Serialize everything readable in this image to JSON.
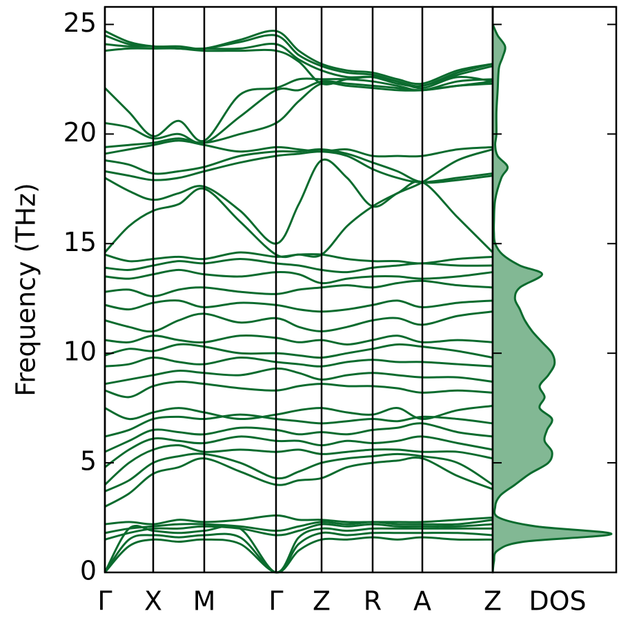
{
  "chart_data": [
    {
      "type": "line",
      "ylabel": "Frequency (THz)",
      "x": [
        0,
        0.35,
        0.7,
        1.07,
        1.44,
        1.96,
        2.48,
        2.81,
        3.14,
        3.51,
        3.88,
        4.24,
        4.6,
        5.11,
        5.62
      ],
      "xlim": [
        0,
        5.62
      ],
      "xticks": [
        {
          "value": 0,
          "label": "Γ"
        },
        {
          "value": 0.7,
          "label": "X"
        },
        {
          "value": 1.44,
          "label": "M"
        },
        {
          "value": 2.48,
          "label": "Γ"
        },
        {
          "value": 3.14,
          "label": "Z"
        },
        {
          "value": 3.88,
          "label": "R"
        },
        {
          "value": 4.6,
          "label": "A"
        },
        {
          "value": 5.62,
          "label": "Z"
        }
      ],
      "ylim": [
        0,
        25.8
      ],
      "yticks": [
        0,
        5,
        10,
        15,
        20,
        25
      ],
      "grid": true,
      "color": "#0b6b2e",
      "series": [
        {
          "values": [
            0,
            1.2,
            1.5,
            1.4,
            1.5,
            1.3,
            0,
            1.0,
            1.5,
            1.5,
            1.6,
            1.5,
            1.6,
            1.5,
            1.5
          ]
        },
        {
          "values": [
            0,
            1.5,
            1.7,
            1.6,
            1.7,
            1.6,
            0,
            1.3,
            1.8,
            1.7,
            1.8,
            1.8,
            1.8,
            1.8,
            1.7
          ]
        },
        {
          "values": [
            0,
            2.0,
            1.9,
            1.8,
            1.9,
            2.0,
            0,
            1.6,
            2.0,
            1.9,
            2.0,
            2.0,
            2.0,
            2.0,
            2.0
          ]
        },
        {
          "values": [
            1.5,
            1.8,
            2.0,
            2.0,
            2.1,
            2.0,
            1.7,
            1.9,
            2.2,
            2.1,
            2.2,
            2.1,
            2.1,
            2.1,
            2.2
          ]
        },
        {
          "values": [
            1.8,
            2.0,
            2.1,
            2.2,
            2.2,
            2.1,
            1.9,
            2.1,
            2.3,
            2.2,
            2.3,
            2.2,
            2.2,
            2.2,
            2.4
          ]
        },
        {
          "values": [
            2.2,
            2.3,
            2.2,
            2.4,
            2.3,
            2.4,
            2.6,
            2.4,
            2.4,
            2.3,
            2.3,
            2.3,
            2.3,
            2.4,
            2.5
          ]
        },
        {
          "values": [
            3.0,
            3.6,
            4.5,
            4.8,
            5.2,
            4.6,
            4.0,
            4.2,
            4.3,
            4.8,
            5.0,
            5.1,
            5.2,
            4.4,
            3.8
          ]
        },
        {
          "values": [
            3.7,
            4.2,
            5.0,
            5.3,
            5.4,
            5.0,
            4.3,
            4.6,
            5.0,
            5.2,
            5.3,
            5.4,
            5.3,
            5.0,
            4.0
          ]
        },
        {
          "values": [
            4.0,
            5.0,
            5.6,
            5.8,
            5.5,
            5.6,
            5.5,
            5.6,
            5.4,
            5.5,
            5.6,
            5.6,
            5.5,
            5.5,
            5.2
          ]
        },
        {
          "values": [
            4.8,
            5.6,
            6.1,
            6.0,
            5.9,
            6.2,
            6.0,
            6.0,
            5.8,
            6.0,
            5.9,
            6.0,
            6.2,
            5.9,
            5.6
          ]
        },
        {
          "values": [
            5.5,
            6.0,
            6.5,
            6.4,
            6.3,
            6.6,
            6.5,
            6.3,
            6.4,
            6.3,
            6.5,
            6.6,
            6.8,
            6.4,
            6.2
          ]
        },
        {
          "values": [
            6.2,
            6.5,
            7.0,
            7.1,
            7.0,
            7.2,
            7.0,
            6.9,
            6.8,
            6.9,
            7.0,
            6.9,
            7.1,
            7.0,
            6.8
          ]
        },
        {
          "values": [
            7.5,
            7.0,
            7.3,
            7.5,
            7.3,
            7.0,
            7.2,
            7.4,
            7.5,
            7.3,
            7.2,
            7.5,
            7.0,
            7.4,
            7.6
          ]
        },
        {
          "values": [
            8.3,
            8.0,
            8.5,
            8.7,
            8.6,
            8.4,
            8.3,
            8.5,
            8.6,
            8.5,
            8.5,
            8.4,
            8.2,
            8.3,
            8.2
          ]
        },
        {
          "values": [
            8.6,
            8.8,
            9.0,
            9.2,
            9.1,
            9.0,
            9.3,
            9.1,
            8.8,
            9.0,
            9.1,
            9.0,
            8.9,
            8.9,
            8.7
          ]
        },
        {
          "values": [
            9.4,
            9.5,
            9.8,
            9.6,
            9.5,
            9.8,
            9.6,
            9.5,
            9.4,
            9.6,
            9.7,
            9.6,
            9.6,
            9.5,
            9.4
          ]
        },
        {
          "values": [
            9.9,
            10.2,
            10.1,
            10.4,
            10.3,
            10.0,
            10.0,
            9.9,
            9.8,
            10.0,
            10.2,
            10.4,
            10.3,
            10.1,
            9.8
          ]
        },
        {
          "values": [
            10.6,
            10.5,
            10.8,
            10.6,
            10.5,
            10.8,
            10.7,
            10.5,
            10.6,
            10.4,
            10.6,
            10.8,
            10.5,
            10.6,
            10.5
          ]
        },
        {
          "values": [
            11.5,
            11.2,
            11.0,
            11.5,
            11.8,
            11.4,
            11.6,
            11.2,
            11.0,
            11.2,
            11.5,
            11.6,
            11.3,
            11.7,
            11.9
          ]
        },
        {
          "values": [
            12.2,
            12.0,
            12.3,
            12.4,
            12.1,
            12.3,
            12.2,
            12.0,
            11.9,
            12.0,
            12.2,
            12.4,
            12.1,
            12.3,
            12.4
          ]
        },
        {
          "values": [
            12.8,
            12.9,
            12.6,
            12.9,
            13.0,
            12.8,
            12.7,
            12.9,
            13.0,
            13.1,
            13.0,
            13.2,
            13.3,
            13.1,
            13.0
          ]
        },
        {
          "values": [
            13.5,
            13.4,
            13.6,
            13.8,
            13.6,
            13.5,
            13.7,
            13.6,
            13.2,
            13.4,
            13.5,
            13.5,
            13.4,
            13.5,
            13.7
          ]
        },
        {
          "values": [
            13.9,
            13.8,
            14.0,
            14.2,
            14.1,
            14.3,
            14.1,
            14.0,
            13.8,
            13.7,
            13.9,
            14.0,
            14.1,
            14.0,
            14.0
          ]
        },
        {
          "values": [
            14.5,
            14.2,
            14.3,
            14.4,
            14.3,
            14.6,
            14.4,
            14.5,
            14.5,
            14.3,
            14.2,
            14.2,
            14.1,
            14.3,
            14.4
          ]
        },
        {
          "values": [
            14.6,
            15.8,
            16.5,
            16.8,
            17.5,
            16.0,
            14.5,
            14.5,
            14.5,
            15.8,
            16.7,
            17.3,
            17.8,
            16.2,
            14.6
          ]
        },
        {
          "values": [
            18.0,
            17.4,
            17.0,
            17.3,
            17.6,
            16.5,
            15.0,
            16.8,
            18.8,
            18.0,
            16.7,
            17.3,
            17.8,
            18.8,
            19.3
          ]
        },
        {
          "values": [
            18.3,
            18.1,
            17.9,
            18.0,
            18.3,
            18.7,
            19.0,
            19.1,
            19.2,
            19.0,
            18.4,
            18.0,
            17.8,
            18.0,
            18.2
          ]
        },
        {
          "values": [
            18.8,
            18.6,
            18.2,
            18.3,
            18.5,
            19.0,
            19.2,
            19.2,
            19.3,
            19.1,
            18.7,
            18.3,
            17.8,
            17.9,
            18.1
          ]
        },
        {
          "values": [
            19.1,
            19.3,
            19.5,
            19.7,
            19.5,
            19.2,
            19.4,
            19.3,
            19.2,
            19.3,
            19.0,
            19.0,
            19.0,
            19.3,
            19.4
          ]
        },
        {
          "values": [
            19.4,
            19.5,
            19.6,
            19.8,
            19.6,
            20.0,
            20.5,
            21.5,
            22.3,
            22.2,
            22.1,
            22.0,
            22.0,
            22.2,
            22.3
          ]
        },
        {
          "values": [
            20.5,
            20.3,
            19.8,
            20.0,
            19.6,
            20.8,
            22.0,
            22.0,
            22.4,
            22.3,
            22.2,
            22.1,
            22.0,
            22.2,
            22.4
          ]
        },
        {
          "values": [
            22.1,
            21.0,
            19.9,
            20.6,
            19.7,
            21.8,
            22.1,
            22.5,
            22.5,
            22.5,
            22.4,
            22.2,
            22.0,
            22.4,
            22.5
          ]
        },
        {
          "values": [
            23.8,
            23.9,
            23.9,
            23.9,
            23.8,
            23.8,
            23.8,
            23.3,
            22.3,
            22.5,
            22.6,
            22.4,
            22.1,
            22.6,
            22.4
          ]
        },
        {
          "values": [
            24.1,
            24.0,
            24.0,
            23.9,
            23.9,
            23.9,
            24.1,
            23.4,
            22.9,
            22.6,
            22.6,
            22.3,
            22.2,
            22.7,
            23.1
          ]
        },
        {
          "values": [
            24.5,
            24.1,
            24.0,
            23.9,
            23.9,
            24.2,
            24.5,
            23.6,
            23.1,
            22.8,
            22.7,
            22.4,
            22.2,
            22.8,
            23.2
          ]
        },
        {
          "values": [
            24.7,
            24.2,
            24.0,
            24.0,
            23.9,
            24.3,
            24.7,
            23.8,
            23.2,
            22.9,
            22.8,
            22.5,
            22.3,
            22.9,
            23.2
          ]
        }
      ]
    },
    {
      "type": "area",
      "xlabel": "DOS",
      "frequencies": [
        0,
        0.5,
        1.0,
        1.4,
        1.75,
        2.1,
        2.5,
        3.0,
        3.5,
        4.0,
        4.5,
        5.0,
        5.5,
        6.0,
        6.5,
        7.0,
        7.5,
        8.0,
        8.5,
        9.0,
        9.5,
        10.0,
        10.5,
        11.0,
        11.5,
        12.0,
        12.5,
        13.0,
        13.6,
        14.0,
        14.5,
        15.0,
        15.5,
        16.0,
        17.0,
        18.0,
        18.5,
        19.0,
        19.5,
        20.0,
        21.0,
        22.0,
        23.0,
        23.5,
        24.0,
        24.5,
        25.0
      ],
      "values": [
        0,
        0.01,
        0.04,
        0.25,
        0.96,
        0.35,
        0.05,
        0.02,
        0.06,
        0.18,
        0.3,
        0.45,
        0.48,
        0.42,
        0.44,
        0.48,
        0.38,
        0.42,
        0.38,
        0.45,
        0.5,
        0.48,
        0.4,
        0.32,
        0.26,
        0.22,
        0.18,
        0.22,
        0.4,
        0.22,
        0.08,
        0.02,
        0.01,
        0.01,
        0.02,
        0.07,
        0.12,
        0.04,
        0.02,
        0.03,
        0.03,
        0.04,
        0.05,
        0.08,
        0.1,
        0.04,
        0
      ],
      "xlim": [
        0,
        1
      ],
      "ylim": [
        0,
        25.8
      ],
      "yticks": [
        0,
        5,
        10,
        15,
        20,
        25
      ],
      "color": "#0b6b2e",
      "fill": "#82b894"
    }
  ]
}
